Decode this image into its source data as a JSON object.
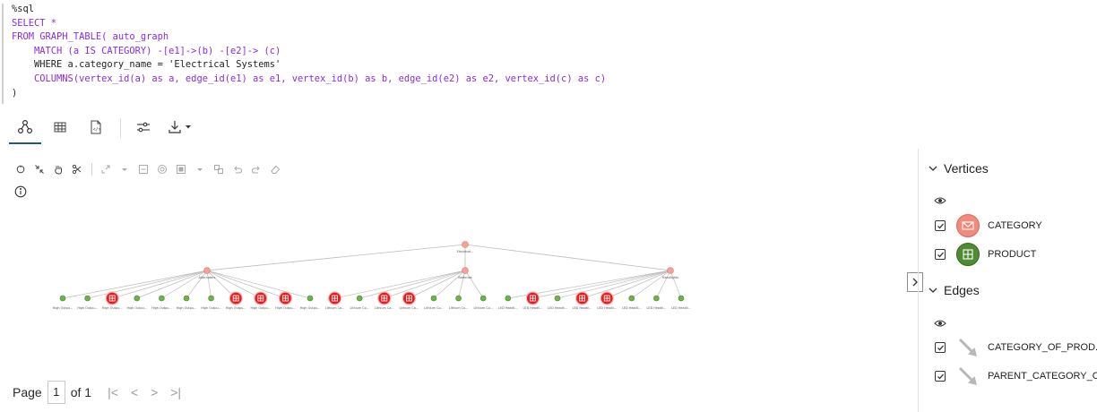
{
  "code": {
    "lines": [
      "%sql",
      "SELECT *",
      "FROM GRAPH_TABLE( auto_graph",
      "    MATCH (a IS CATEGORY) -[e1]->(b) -[e2]-> (c)",
      "    WHERE a.category_name = 'Electrical Systems'",
      "    COLUMNS(vertex_id(a) as a, edge_id(e1) as e1, vertex_id(b) as b, edge_id(e2) as e2, vertex_id(c) as c)",
      ")"
    ]
  },
  "tabs": [
    {
      "icon": "graph-icon",
      "active": true
    },
    {
      "icon": "table-icon",
      "active": false
    },
    {
      "icon": "json-file-icon",
      "active": false
    }
  ],
  "toolbar_tools": [
    "settings-sliders-icon",
    "download-icon"
  ],
  "graph": {
    "root": {
      "label": "Electrical..."
    },
    "categories": [
      {
        "label": "Alternators",
        "products": [
          {
            "label": "High Outpu...",
            "type": "product"
          },
          {
            "label": "High Outpu...",
            "type": "product"
          },
          {
            "label": "High Outpu...",
            "type": "category"
          },
          {
            "label": "High Outpu...",
            "type": "product"
          },
          {
            "label": "High Outpu...",
            "type": "product"
          },
          {
            "label": "High Outpu...",
            "type": "product"
          },
          {
            "label": "High Outpu...",
            "type": "product"
          },
          {
            "label": "High Outpu...",
            "type": "category"
          },
          {
            "label": "High Outpu...",
            "type": "category"
          },
          {
            "label": "High Outpu...",
            "type": "category"
          },
          {
            "label": "High Outpu...",
            "type": "product"
          }
        ]
      },
      {
        "label": "Batteries",
        "products": [
          {
            "label": "Lithium Ca...",
            "type": "category"
          },
          {
            "label": "Lithium Co...",
            "type": "product"
          },
          {
            "label": "Lithium Ca...",
            "type": "category"
          },
          {
            "label": "Lithium Ca...",
            "type": "category"
          },
          {
            "label": "Lithium Co...",
            "type": "product"
          },
          {
            "label": "Lithium Co...",
            "type": "product"
          },
          {
            "label": "Lithium Co...",
            "type": "product"
          }
        ]
      },
      {
        "label": "Headlights",
        "products": [
          {
            "label": "LED Headli...",
            "type": "product"
          },
          {
            "label": "LED Headli...",
            "type": "category"
          },
          {
            "label": "LED Headli...",
            "type": "product"
          },
          {
            "label": "LED Headli...",
            "type": "category"
          },
          {
            "label": "LED Headli...",
            "type": "category"
          },
          {
            "label": "LED Headli...",
            "type": "product"
          },
          {
            "label": "LED Headli...",
            "type": "product"
          },
          {
            "label": "LED Headli...",
            "type": "product"
          }
        ]
      }
    ]
  },
  "pagination": {
    "prefix": "Page",
    "current": "1",
    "total_text": "of 1"
  },
  "legend": {
    "vertices_title": "Vertices",
    "edges_title": "Edges",
    "vertices": [
      {
        "label": "CATEGORY",
        "checked": true,
        "color": "#f28b7b",
        "icon": "envelope-icon"
      },
      {
        "label": "PRODUCT",
        "checked": true,
        "color": "#4f8a35",
        "icon": "grid-box-icon"
      }
    ],
    "edges": [
      {
        "label": "CATEGORY_OF_PROD...",
        "checked": true,
        "color": "#b8b8b8"
      },
      {
        "label": "PARENT_CATEGORY_OF",
        "checked": true,
        "color": "#b8b8b8"
      }
    ]
  },
  "colors": {
    "category_node": "#f5a197",
    "product_node": "#6fb24a",
    "highlight_node": "#e02020",
    "edge": "#bdbdbd",
    "tab_active": "#1c5c78"
  }
}
